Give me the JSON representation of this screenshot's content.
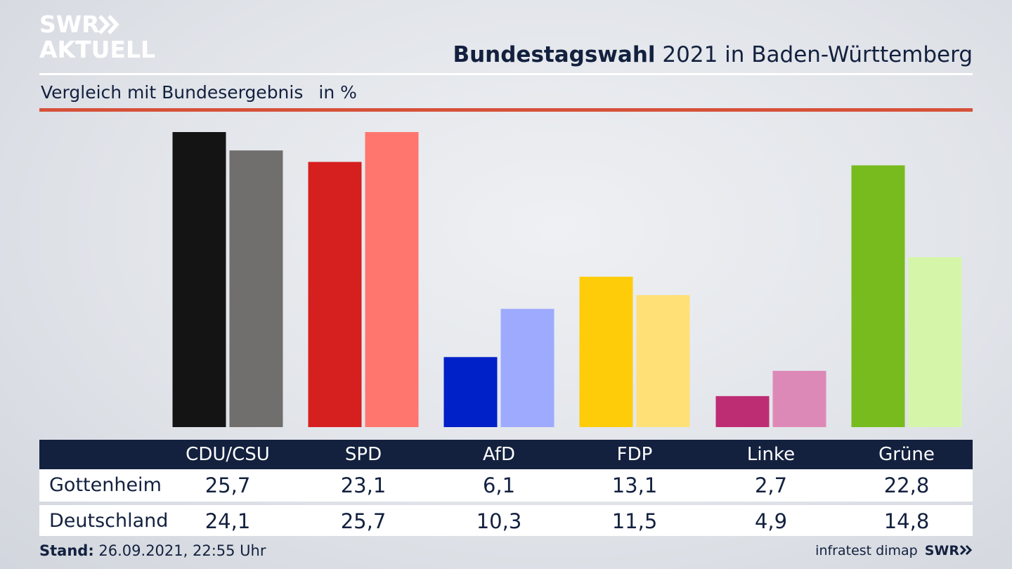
{
  "logo": {
    "line1": "SWR",
    "line2": "AKTUELL"
  },
  "header": {
    "title_bold": "Bundestagswahl",
    "title_rest": " 2021 in Baden-Württemberg",
    "subtitle": "Vergleich mit Bundesergebnis",
    "unit": "in %"
  },
  "chart_data": {
    "type": "bar",
    "categories": [
      "CDU/CSU",
      "SPD",
      "AfD",
      "FDP",
      "Linke",
      "Grüne"
    ],
    "series": [
      {
        "name": "Gottenheim",
        "values": [
          25.7,
          23.1,
          6.1,
          13.1,
          2.7,
          22.8
        ]
      },
      {
        "name": "Deutschland",
        "values": [
          24.1,
          25.7,
          10.3,
          11.5,
          4.9,
          14.8
        ]
      }
    ],
    "value_labels": {
      "Gottenheim": [
        "25,7",
        "23,1",
        "6,1",
        "13,1",
        "2,7",
        "22,8"
      ],
      "Deutschland": [
        "24,1",
        "25,7",
        "10,3",
        "11,5",
        "4,9",
        "14,8"
      ]
    },
    "colors": {
      "Gottenheim": [
        "#141414",
        "#d61f1f",
        "#0020c8",
        "#ffcc0a",
        "#bd2d74",
        "#77bb1e"
      ],
      "Deutschland": [
        "#716f6d",
        "#ff766f",
        "#9eaafe",
        "#ffe077",
        "#dd89b7",
        "#d5f6a8"
      ]
    },
    "title": "Bundestagswahl 2021 in Baden-Württemberg",
    "subtitle": "Vergleich mit Bundesergebnis",
    "ylabel": "in %",
    "ylim": [
      0,
      25.7
    ],
    "grid": false
  },
  "footer": {
    "stand_label": "Stand:",
    "stand_value": " 26.09.2021, 22:55 Uhr",
    "source": "infratest dimap",
    "brand": "SWR"
  },
  "colors": {
    "navy": "#13213f",
    "accent_red": "#d6513a"
  }
}
